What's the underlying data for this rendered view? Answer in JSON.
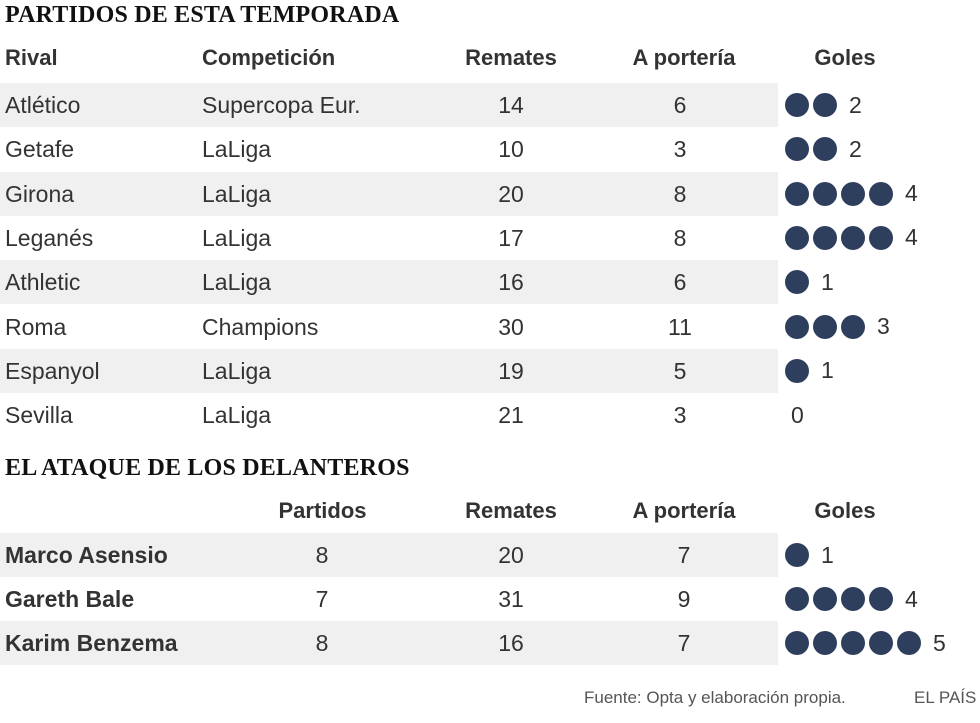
{
  "matches": {
    "title": "PARTIDOS DE ESTA TEMPORADA",
    "headers": {
      "rival": "Rival",
      "competition": "Competición",
      "shots": "Remates",
      "on_target": "A portería",
      "goals": "Goles"
    },
    "rows": [
      {
        "rival": "Atlético",
        "competition": "Supercopa Eur.",
        "shots": "14",
        "on_target": "6",
        "goals": 2,
        "goals_label": "2"
      },
      {
        "rival": "Getafe",
        "competition": "LaLiga",
        "shots": "10",
        "on_target": "3",
        "goals": 2,
        "goals_label": "2"
      },
      {
        "rival": "Girona",
        "competition": "LaLiga",
        "shots": "20",
        "on_target": "8",
        "goals": 4,
        "goals_label": "4"
      },
      {
        "rival": "Leganés",
        "competition": "LaLiga",
        "shots": "17",
        "on_target": "8",
        "goals": 4,
        "goals_label": "4"
      },
      {
        "rival": "Athletic",
        "competition": "LaLiga",
        "shots": "16",
        "on_target": "6",
        "goals": 1,
        "goals_label": "1"
      },
      {
        "rival": "Roma",
        "competition": "Champions",
        "shots": "30",
        "on_target": "11",
        "goals": 3,
        "goals_label": "3"
      },
      {
        "rival": "Espanyol",
        "competition": "LaLiga",
        "shots": "19",
        "on_target": "5",
        "goals": 1,
        "goals_label": "1"
      },
      {
        "rival": "Sevilla",
        "competition": "LaLiga",
        "shots": "21",
        "on_target": "3",
        "goals": 0,
        "goals_label": "0"
      }
    ]
  },
  "forwards": {
    "title": "EL ATAQUE DE LOS DELANTEROS",
    "headers": {
      "matches": "Partidos",
      "shots": "Remates",
      "on_target": "A portería",
      "goals": "Goles"
    },
    "rows": [
      {
        "name": "Marco Asensio",
        "matches": "8",
        "shots": "20",
        "on_target": "7",
        "goals": 1,
        "goals_label": "1"
      },
      {
        "name": "Gareth Bale",
        "matches": "7",
        "shots": "31",
        "on_target": "9",
        "goals": 4,
        "goals_label": "4"
      },
      {
        "name": "Karim Benzema",
        "matches": "8",
        "shots": "16",
        "on_target": "7",
        "goals": 5,
        "goals_label": "5"
      }
    ]
  },
  "footer": {
    "source": "Fuente: Opta y elaboración propia.",
    "brand": "EL PAÍS"
  },
  "colors": {
    "goal_dot": "#2e3f5e",
    "row_shade": "#f0f0f0"
  },
  "chart_data": [
    {
      "type": "table",
      "title": "PARTIDOS DE ESTA TEMPORADA",
      "columns": [
        "Rival",
        "Competición",
        "Remates",
        "A portería",
        "Goles"
      ],
      "rows": [
        [
          "Atlético",
          "Supercopa Eur.",
          14,
          6,
          2
        ],
        [
          "Getafe",
          "LaLiga",
          10,
          3,
          2
        ],
        [
          "Girona",
          "LaLiga",
          20,
          8,
          4
        ],
        [
          "Leganés",
          "LaLiga",
          17,
          8,
          4
        ],
        [
          "Athletic",
          "LaLiga",
          16,
          6,
          1
        ],
        [
          "Roma",
          "Champions",
          30,
          11,
          3
        ],
        [
          "Espanyol",
          "LaLiga",
          19,
          5,
          1
        ],
        [
          "Sevilla",
          "LaLiga",
          21,
          3,
          0
        ]
      ]
    },
    {
      "type": "table",
      "title": "EL ATAQUE DE LOS DELANTEROS",
      "columns": [
        "",
        "Partidos",
        "Remates",
        "A portería",
        "Goles"
      ],
      "rows": [
        [
          "Marco Asensio",
          8,
          20,
          7,
          1
        ],
        [
          "Gareth Bale",
          7,
          31,
          9,
          4
        ],
        [
          "Karim Benzema",
          8,
          16,
          7,
          5
        ]
      ]
    }
  ]
}
